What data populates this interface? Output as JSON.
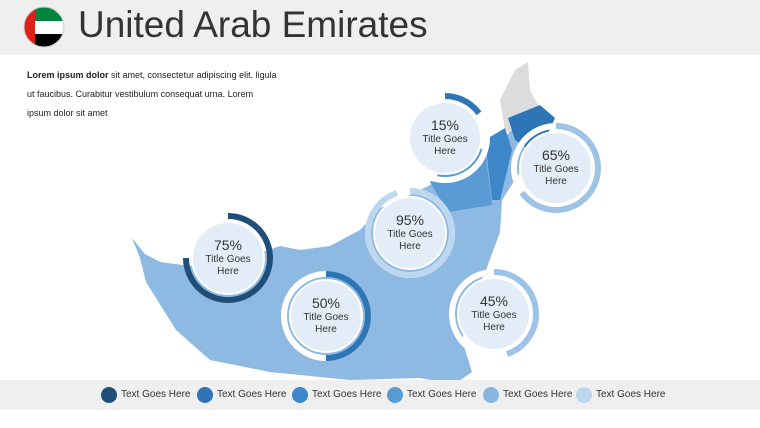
{
  "header": {
    "title": "United Arab Emirates"
  },
  "intro": {
    "bold": "Lorem ipsum dolor",
    "text": "sit amet, consectetur adipiscing elit. ligula ut faucibus. Curabitur vestibulum consequat urna. Lorem ipsum dolor sit amet"
  },
  "donuts": [
    {
      "value": 15,
      "value_label": "15%",
      "title": "Title Goes Here",
      "color": "#2e75b6"
    },
    {
      "value": 65,
      "value_label": "65%",
      "title": "Title Goes Here",
      "color": "#9dc3e6"
    },
    {
      "value": 95,
      "value_label": "95%",
      "title": "Title Goes Here",
      "color": "#bdd7ee"
    },
    {
      "value": 75,
      "value_label": "75%",
      "title": "Title Goes Here",
      "color": "#1f4e79"
    },
    {
      "value": 50,
      "value_label": "50%",
      "title": "Title Goes Here",
      "color": "#2e75b6"
    },
    {
      "value": 45,
      "value_label": "45%",
      "title": "Title Goes Here",
      "color": "#9dc3e6"
    }
  ],
  "legend": [
    {
      "label": "Text Goes Here",
      "color": "#1f4e79"
    },
    {
      "label": "Text Goes Here",
      "color": "#2e75b6"
    },
    {
      "label": "Text Goes Here",
      "color": "#3b87c8"
    },
    {
      "label": "Text Goes Here",
      "color": "#5b9bd5"
    },
    {
      "label": "Text Goes Here",
      "color": "#86b5e0"
    },
    {
      "label": "Text Goes Here",
      "color": "#bdd7ee"
    }
  ]
}
